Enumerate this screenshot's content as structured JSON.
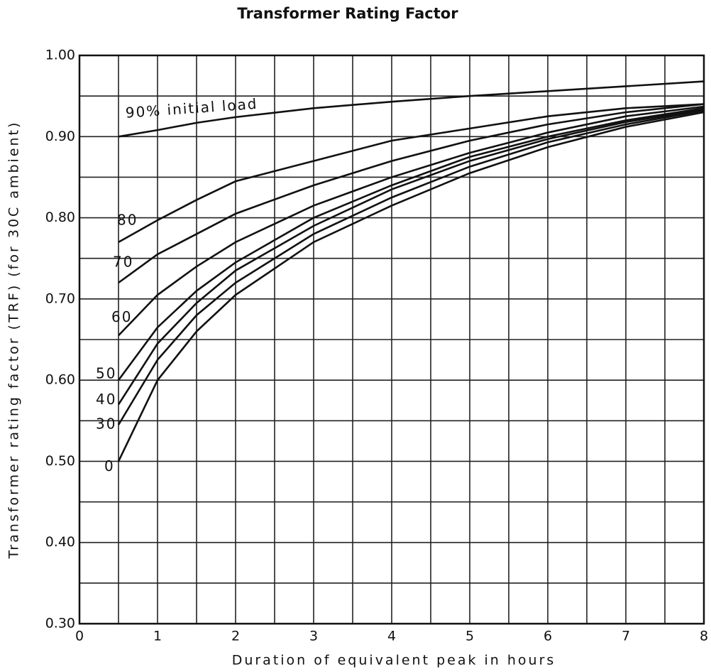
{
  "chart_data": {
    "type": "line",
    "title": "Transformer Rating Factor",
    "x_label": "Duration of equivalent peak in hours",
    "y_label": "Transformer rating factor (TRF) (for 30C ambient)",
    "x": [
      0.5,
      1,
      1.5,
      2,
      3,
      4,
      5,
      6,
      7,
      8
    ],
    "series": [
      {
        "name": "90% initial load",
        "color": "#111111",
        "values": [
          0.9,
          0.908,
          0.917,
          0.924,
          0.935,
          0.943,
          0.95,
          0.956,
          0.962,
          0.968
        ]
      },
      {
        "name": "80",
        "color": "#111111",
        "values": [
          0.77,
          0.797,
          0.822,
          0.845,
          0.87,
          0.895,
          0.91,
          0.925,
          0.935,
          0.94
        ]
      },
      {
        "name": "70",
        "color": "#111111",
        "values": [
          0.72,
          0.755,
          0.78,
          0.805,
          0.84,
          0.87,
          0.895,
          0.915,
          0.93,
          0.94
        ]
      },
      {
        "name": "60",
        "color": "#111111",
        "values": [
          0.655,
          0.705,
          0.74,
          0.77,
          0.815,
          0.85,
          0.88,
          0.905,
          0.925,
          0.937
        ]
      },
      {
        "name": "50",
        "color": "#111111",
        "values": [
          0.6,
          0.665,
          0.71,
          0.745,
          0.8,
          0.84,
          0.875,
          0.9,
          0.92,
          0.935
        ]
      },
      {
        "name": "40",
        "color": "#111111",
        "values": [
          0.57,
          0.645,
          0.695,
          0.735,
          0.79,
          0.835,
          0.87,
          0.897,
          0.918,
          0.933
        ]
      },
      {
        "name": "30",
        "color": "#111111",
        "values": [
          0.545,
          0.625,
          0.68,
          0.72,
          0.78,
          0.825,
          0.863,
          0.893,
          0.915,
          0.932
        ]
      },
      {
        "name": "0",
        "color": "#111111",
        "values": [
          0.5,
          0.6,
          0.66,
          0.705,
          0.77,
          0.815,
          0.855,
          0.887,
          0.912,
          0.93
        ]
      }
    ],
    "xlim": [
      0,
      8
    ],
    "ylim": [
      0.3,
      1.0
    ],
    "xticks": [
      0,
      1,
      2,
      3,
      4,
      5,
      6,
      7,
      8
    ],
    "yticks": [
      {
        "value": 0.3,
        "label": "0.30"
      },
      {
        "value": 0.4,
        "label": "0.40"
      },
      {
        "value": 0.5,
        "label": "0.50"
      },
      {
        "value": 0.6,
        "label": "0.60"
      },
      {
        "value": 0.7,
        "label": "0.70"
      },
      {
        "value": 0.8,
        "label": "0.80"
      },
      {
        "value": 0.9,
        "label": "0.90"
      },
      {
        "value": 1.0,
        "label": "1.00"
      }
    ],
    "xminorticks": [
      0.5,
      1.5,
      2.5,
      3.5,
      4.5,
      5.5,
      6.5,
      7.5
    ],
    "yminorticks": [
      0.35,
      0.45,
      0.55,
      0.65,
      0.75,
      0.85,
      0.95
    ],
    "grid": true
  }
}
